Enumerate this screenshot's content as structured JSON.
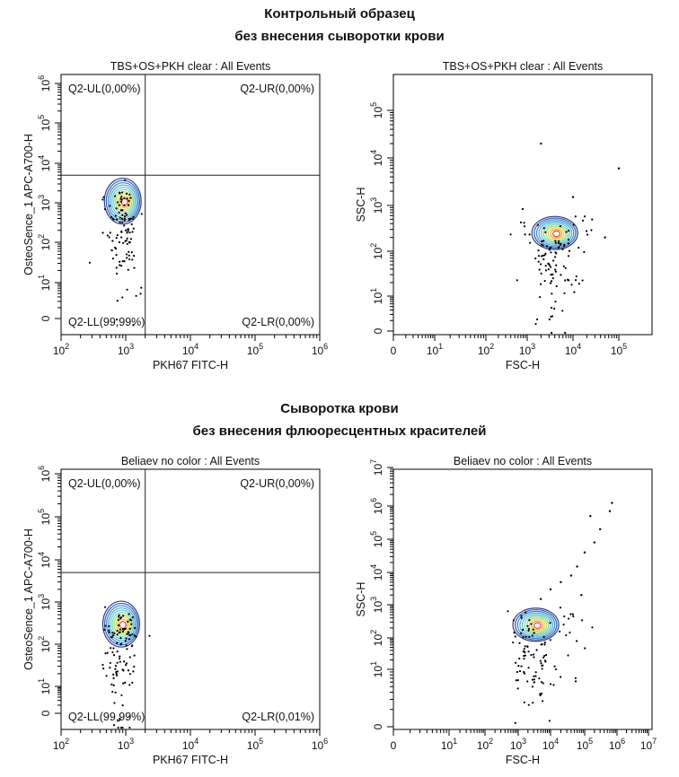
{
  "section1": {
    "line1": "Контрольный образец",
    "line2": "без внесения сыворотки крови"
  },
  "section2": {
    "line1": "Сыворотка крови",
    "line2": "без внесения флюоресцентных красителей"
  },
  "chart_data": [
    {
      "type": "scatter",
      "title": "TBS+OS+PKH clear : All Events",
      "xlabel": "PKH67 FITC-H",
      "ylabel": "OsteoSence_1 APC-A700-H",
      "xticks": [
        "10^2",
        "10^3",
        "10^4",
        "10^5",
        "10^6"
      ],
      "yticks": [
        "0",
        "10^1",
        "10^2",
        "10^3",
        "10^4",
        "10^5",
        "10^6"
      ],
      "quadrants": {
        "UL": "Q2-UL(0,00%)",
        "UR": "Q2-UR(0,00%)",
        "LL": "Q2-LL(99,99%)",
        "LR": "Q2-LR(0,00%)"
      },
      "gate": {
        "x": 2000,
        "y": 5000
      },
      "population_center": {
        "x": 900,
        "y": 1100
      }
    },
    {
      "type": "scatter",
      "title": "TBS+OS+PKH clear : All Events",
      "xlabel": "FSC-H",
      "ylabel": "SSC-H",
      "xticks": [
        "0",
        "10^1",
        "10^2",
        "10^3",
        "10^4",
        "10^5"
      ],
      "yticks": [
        "0",
        "10^1",
        "10^2",
        "10^3",
        "10^4",
        "10^5"
      ],
      "population_center": {
        "x": 4000,
        "y": 250
      }
    },
    {
      "type": "scatter",
      "title": "Beliaev no color : All Events",
      "xlabel": "PKH67 FITC-H",
      "ylabel": "OsteoSence_1 APC-A700-H",
      "xticks": [
        "10^2",
        "10^3",
        "10^4",
        "10^5",
        "10^6"
      ],
      "yticks": [
        "0",
        "10^1",
        "10^2",
        "10^3",
        "10^4",
        "10^5",
        "10^6"
      ],
      "quadrants": {
        "UL": "Q2-UL(0,00%)",
        "UR": "Q2-UR(0,00%)",
        "LL": "Q2-LL(99,99%)",
        "LR": "Q2-LR(0,01%)"
      },
      "gate": {
        "x": 2000,
        "y": 5000
      },
      "population_center": {
        "x": 850,
        "y": 300
      }
    },
    {
      "type": "scatter",
      "title": "Beliaev no color : All Events",
      "xlabel": "FSC-H",
      "ylabel": "SSC-H",
      "xticks": [
        "0",
        "10^1",
        "10^2",
        "10^3",
        "10^4",
        "10^5",
        "10^6",
        "10^7"
      ],
      "yticks": [
        "0",
        "10^1",
        "10^2",
        "10^3",
        "10^4",
        "10^5",
        "10^6",
        "10^7"
      ],
      "population_center": {
        "x": 3500,
        "y": 250
      }
    }
  ]
}
